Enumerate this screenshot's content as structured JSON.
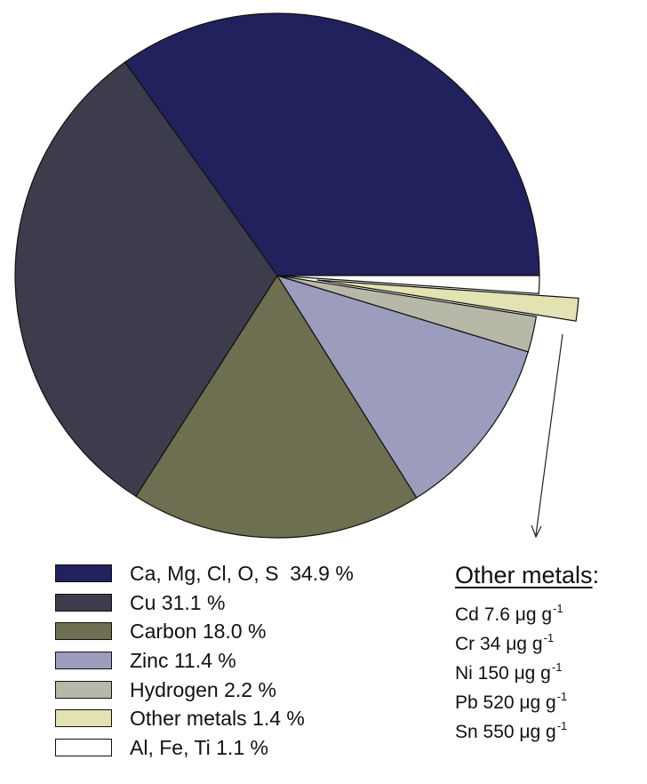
{
  "chart_data": {
    "type": "pie",
    "slices": [
      {
        "label": "Ca, Mg, Cl, O, S  34.9 %",
        "value": 34.9,
        "color": "#21215e"
      },
      {
        "label": "Cu 31.1 %",
        "value": 31.1,
        "color": "#3c3c4c"
      },
      {
        "label": "Carbon 18.0 %",
        "value": 18.0,
        "color": "#6e6e50"
      },
      {
        "label": "Zinc 11.4 %",
        "value": 11.4,
        "color": "#9c9cbc"
      },
      {
        "label": "Hydrogen 2.2 %",
        "value": 2.2,
        "color": "#b8b8a8"
      },
      {
        "label": "Other metals 1.4 %",
        "value": 1.4,
        "color": "#e2e2b2",
        "exploded": true
      },
      {
        "label": "Al, Fe, Ti 1.1 %",
        "value": 1.1,
        "color": "#ffffff"
      }
    ],
    "legend_placement": "bottom-left",
    "annotation": {
      "title": "Other metals",
      "title_suffix": ":",
      "unit": "μg g",
      "unit_exponent": "-1",
      "items": [
        {
          "metal": "Cd",
          "value": "7.6"
        },
        {
          "metal": "Cr",
          "value": "34"
        },
        {
          "metal": "Ni",
          "value": "150"
        },
        {
          "metal": "Pb",
          "value": "520"
        },
        {
          "metal": "Sn",
          "value": "550"
        }
      ]
    }
  }
}
